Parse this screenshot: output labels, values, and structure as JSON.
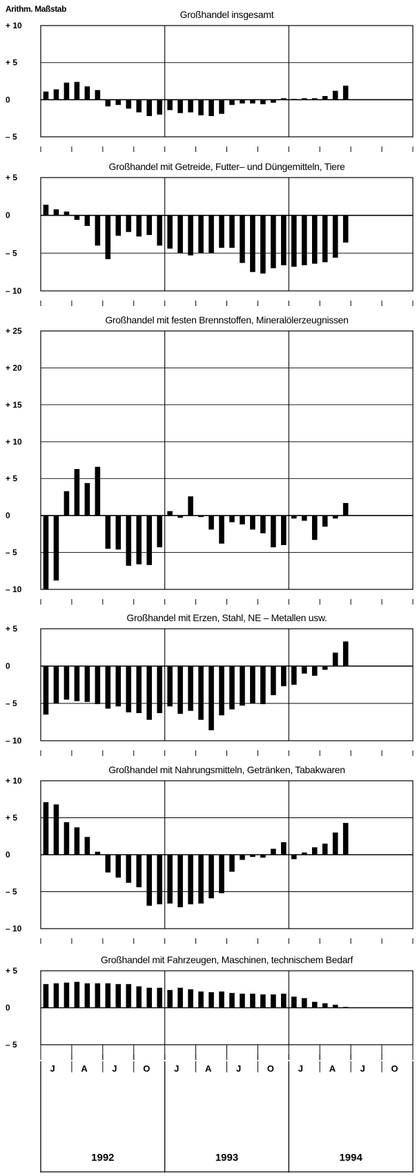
{
  "scale_label": "Arithm. Maßstab",
  "x_axis": {
    "month_labels": [
      "J",
      "A",
      "J",
      "O",
      "J",
      "A",
      "J",
      "O",
      "J",
      "A",
      "J",
      "O"
    ],
    "year_labels": [
      "1992",
      "1993",
      "1994"
    ]
  },
  "chart_data": [
    {
      "type": "bar",
      "title": "Großhandel insgesamt",
      "ylim": [
        -5,
        10
      ],
      "yticks": [
        -5,
        0,
        5,
        10
      ],
      "ytick_labels": [
        "– 5",
        "0",
        "+ 5",
        "+ 10"
      ],
      "x": [
        "1992-01",
        "1992-02",
        "1992-03",
        "1992-04",
        "1992-05",
        "1992-06",
        "1992-07",
        "1992-08",
        "1992-09",
        "1992-10",
        "1992-11",
        "1992-12",
        "1993-01",
        "1993-02",
        "1993-03",
        "1993-04",
        "1993-05",
        "1993-06",
        "1993-07",
        "1993-08",
        "1993-09",
        "1993-10",
        "1993-11",
        "1993-12",
        "1994-01",
        "1994-02",
        "1994-03",
        "1994-04",
        "1994-05",
        "1994-06"
      ],
      "values": [
        1.1,
        1.4,
        2.3,
        2.4,
        1.8,
        1.3,
        -0.9,
        -0.7,
        -1.2,
        -1.7,
        -2.2,
        -2.0,
        -1.4,
        -1.8,
        -1.7,
        -2.1,
        -2.2,
        -1.9,
        -0.7,
        -0.5,
        -0.5,
        -0.6,
        -0.4,
        0.2,
        0.1,
        0.2,
        0.2,
        0.5,
        1.2,
        1.9
      ],
      "grid": true
    },
    {
      "type": "bar",
      "title": "Großhandel mit Getreide, Futter– und Düngemitteln, Tiere",
      "ylim": [
        -10,
        5
      ],
      "yticks": [
        -10,
        -5,
        0,
        5
      ],
      "ytick_labels": [
        "– 10",
        "– 5",
        "0",
        "+ 5"
      ],
      "x": [
        "1992-01",
        "1992-02",
        "1992-03",
        "1992-04",
        "1992-05",
        "1992-06",
        "1992-07",
        "1992-08",
        "1992-09",
        "1992-10",
        "1992-11",
        "1992-12",
        "1993-01",
        "1993-02",
        "1993-03",
        "1993-04",
        "1993-05",
        "1993-06",
        "1993-07",
        "1993-08",
        "1993-09",
        "1993-10",
        "1993-11",
        "1993-12",
        "1994-01",
        "1994-02",
        "1994-03",
        "1994-04",
        "1994-05",
        "1994-06"
      ],
      "values": [
        1.4,
        0.8,
        0.5,
        -0.6,
        -1.4,
        -4.0,
        -5.8,
        -2.7,
        -2.2,
        -2.8,
        -2.6,
        -4.0,
        -4.4,
        -5.0,
        -5.3,
        -5.0,
        -5.0,
        -4.3,
        -4.3,
        -6.3,
        -7.5,
        -7.7,
        -7.0,
        -6.6,
        -6.8,
        -6.6,
        -6.4,
        -6.2,
        -5.6,
        -3.6
      ],
      "grid": true
    },
    {
      "type": "bar",
      "title": "Großhandel mit festen Brennstoffen, Mineralölerzeugnissen",
      "ylim": [
        -10,
        25
      ],
      "yticks": [
        -10,
        -5,
        0,
        5,
        10,
        15,
        20,
        25
      ],
      "ytick_labels": [
        "– 10",
        "– 5",
        "0",
        "+ 5",
        "+ 10",
        "+ 15",
        "+ 20",
        "+ 25"
      ],
      "x": [
        "1992-01",
        "1992-02",
        "1992-03",
        "1992-04",
        "1992-05",
        "1992-06",
        "1992-07",
        "1992-08",
        "1992-09",
        "1992-10",
        "1992-11",
        "1992-12",
        "1993-01",
        "1993-02",
        "1993-03",
        "1993-04",
        "1993-05",
        "1993-06",
        "1993-07",
        "1993-08",
        "1993-09",
        "1993-10",
        "1993-11",
        "1993-12",
        "1994-01",
        "1994-02",
        "1994-03",
        "1994-04",
        "1994-05",
        "1994-06"
      ],
      "values": [
        -10.0,
        -8.8,
        3.3,
        6.3,
        4.4,
        6.6,
        -4.5,
        -4.6,
        -6.8,
        -6.6,
        -6.7,
        -4.3,
        0.6,
        -0.3,
        2.6,
        -0.2,
        -1.9,
        -3.8,
        -0.9,
        -1.2,
        -1.9,
        -2.4,
        -4.3,
        -4.0,
        -0.4,
        -0.7,
        -3.3,
        -1.5,
        -0.4,
        1.7
      ],
      "grid": true
    },
    {
      "type": "bar",
      "title": "Großhandel mit Erzen, Stahl, NE – Metallen usw.",
      "ylim": [
        -10,
        5
      ],
      "yticks": [
        -10,
        -5,
        0,
        5
      ],
      "ytick_labels": [
        "– 10",
        "– 5",
        "0",
        "+ 5"
      ],
      "x": [
        "1992-01",
        "1992-02",
        "1992-03",
        "1992-04",
        "1992-05",
        "1992-06",
        "1992-07",
        "1992-08",
        "1992-09",
        "1992-10",
        "1992-11",
        "1992-12",
        "1993-01",
        "1993-02",
        "1993-03",
        "1993-04",
        "1993-05",
        "1993-06",
        "1993-07",
        "1993-08",
        "1993-09",
        "1993-10",
        "1993-11",
        "1993-12",
        "1994-01",
        "1994-02",
        "1994-03",
        "1994-04",
        "1994-05",
        "1994-06"
      ],
      "values": [
        -6.5,
        -5.0,
        -4.5,
        -4.7,
        -4.8,
        -5.1,
        -5.7,
        -5.4,
        -6.2,
        -6.3,
        -7.2,
        -6.3,
        -5.4,
        -6.4,
        -6.0,
        -7.2,
        -8.6,
        -6.6,
        -5.8,
        -5.3,
        -5.0,
        -5.1,
        -3.9,
        -2.7,
        -2.5,
        -1.0,
        -1.3,
        -0.5,
        1.8,
        3.3
      ],
      "grid": true
    },
    {
      "type": "bar",
      "title": "Großhandel mit Nahrungsmitteln, Getränken, Tabakwaren",
      "ylim": [
        -10,
        10
      ],
      "yticks": [
        -10,
        -5,
        0,
        5,
        10
      ],
      "ytick_labels": [
        "– 10",
        "– 5",
        "0",
        "+ 5",
        "+ 10"
      ],
      "x": [
        "1992-01",
        "1992-02",
        "1992-03",
        "1992-04",
        "1992-05",
        "1992-06",
        "1992-07",
        "1992-08",
        "1992-09",
        "1992-10",
        "1992-11",
        "1992-12",
        "1993-01",
        "1993-02",
        "1993-03",
        "1993-04",
        "1993-05",
        "1993-06",
        "1993-07",
        "1993-08",
        "1993-09",
        "1993-10",
        "1993-11",
        "1993-12",
        "1994-01",
        "1994-02",
        "1994-03",
        "1994-04",
        "1994-05",
        "1994-06"
      ],
      "values": [
        7.1,
        6.8,
        4.4,
        3.7,
        2.4,
        0.4,
        -2.4,
        -3.1,
        -3.8,
        -4.4,
        -6.9,
        -6.7,
        -6.6,
        -7.1,
        -6.7,
        -6.6,
        -5.9,
        -5.2,
        -2.3,
        -0.7,
        -0.3,
        -0.4,
        0.8,
        1.7,
        -0.6,
        0.3,
        1.0,
        1.5,
        3.0,
        4.3
      ],
      "grid": true
    },
    {
      "type": "bar",
      "title": "Großhandel mit Fahrzeugen, Maschinen, technischem Bedarf",
      "ylim": [
        -5,
        5
      ],
      "yticks": [
        -5,
        0,
        5
      ],
      "ytick_labels": [
        "– 5",
        "0",
        "+ 5"
      ],
      "x": [
        "1992-01",
        "1992-02",
        "1992-03",
        "1992-04",
        "1992-05",
        "1992-06",
        "1992-07",
        "1992-08",
        "1992-09",
        "1992-10",
        "1992-11",
        "1992-12",
        "1993-01",
        "1993-02",
        "1993-03",
        "1993-04",
        "1993-05",
        "1993-06",
        "1993-07",
        "1993-08",
        "1993-09",
        "1993-10",
        "1993-11",
        "1993-12",
        "1994-01",
        "1994-02",
        "1994-03",
        "1994-04",
        "1994-05",
        "1994-06"
      ],
      "values": [
        3.2,
        3.3,
        3.4,
        3.5,
        3.3,
        3.3,
        3.3,
        3.2,
        3.2,
        2.9,
        2.7,
        2.7,
        2.4,
        2.7,
        2.5,
        2.2,
        2.1,
        2.2,
        2.0,
        1.9,
        1.9,
        1.8,
        1.8,
        1.9,
        1.5,
        1.3,
        0.8,
        0.6,
        0.4,
        0.1
      ],
      "grid": true
    }
  ]
}
